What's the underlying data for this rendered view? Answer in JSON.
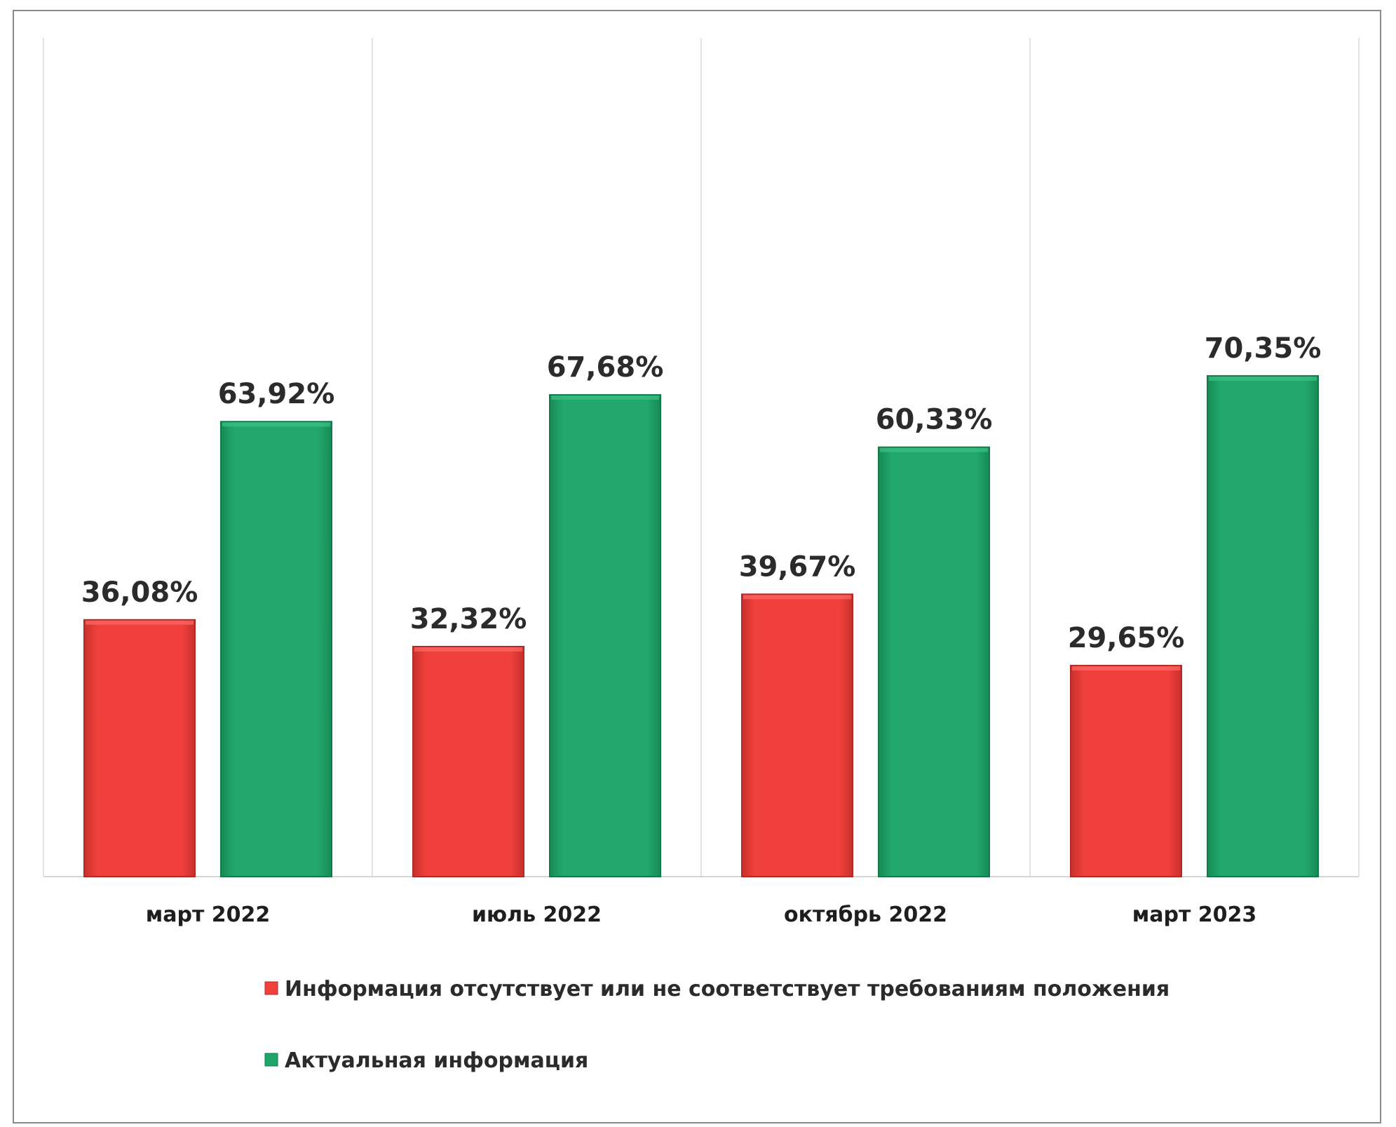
{
  "chart_data": {
    "type": "bar",
    "categories": [
      "март 2022",
      "июль 2022",
      "октябрь 2022",
      "март 2023"
    ],
    "series": [
      {
        "name": "Информация отсутствует или не соответствует требованиям положения",
        "values": [
          36.08,
          32.32,
          39.67,
          29.65
        ],
        "labels": [
          "36,08%",
          "32,32%",
          "39,67%",
          "29,65%"
        ],
        "color": "#f0403c"
      },
      {
        "name": "Актуальная информация",
        "values": [
          63.92,
          67.68,
          60.33,
          70.35
        ],
        "labels": [
          "63,92%",
          "67,68%",
          "60,33%",
          "70,35%"
        ],
        "color": "#1fa46a"
      }
    ],
    "ylim": [
      0,
      100
    ],
    "grid": "vertical category separators",
    "legend_position": "bottom-left"
  }
}
